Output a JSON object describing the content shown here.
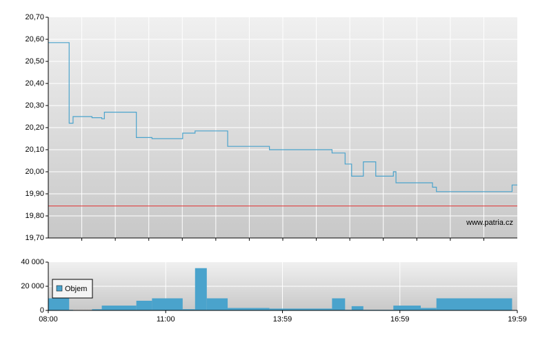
{
  "chart_data": [
    {
      "type": "line",
      "x": [
        "08:00",
        "08:32",
        "08:32",
        "08:38",
        "08:38",
        "09:07",
        "09:07",
        "09:22",
        "09:22",
        "09:26",
        "09:26",
        "10:15",
        "10:15",
        "10:39",
        "10:39",
        "11:26",
        "11:26",
        "11:45",
        "11:45",
        "12:35",
        "12:35",
        "13:39",
        "13:39",
        "15:15",
        "15:15",
        "15:35",
        "15:35",
        "15:45",
        "15:45",
        "16:03",
        "16:03",
        "16:22",
        "16:22",
        "16:49",
        "16:49",
        "16:53",
        "16:53",
        "17:49",
        "17:49",
        "17:55",
        "17:55",
        "19:51",
        "19:51",
        "19:59"
      ],
      "series": [
        {
          "color": "#4aa3cc",
          "values": [
            20.585,
            20.585,
            20.22,
            20.22,
            20.25,
            20.25,
            20.245,
            20.245,
            20.24,
            20.24,
            20.27,
            20.27,
            20.155,
            20.155,
            20.15,
            20.15,
            20.175,
            20.175,
            20.185,
            20.185,
            20.115,
            20.115,
            20.1,
            20.1,
            20.085,
            20.085,
            20.035,
            20.035,
            19.98,
            19.98,
            20.045,
            20.045,
            19.98,
            19.98,
            20.0,
            20.0,
            19.95,
            19.95,
            19.93,
            19.93,
            19.91,
            19.91,
            19.94,
            19.94
          ]
        }
      ],
      "reference_line": {
        "value": 19.845,
        "color": "#e03030"
      },
      "xlim": [
        "08:00",
        "19:59"
      ],
      "ylim": [
        19.7,
        20.7
      ],
      "yticks": [
        {
          "value": 19.7,
          "label": "19,70"
        },
        {
          "value": 19.8,
          "label": "19,80"
        },
        {
          "value": 19.9,
          "label": "19,90"
        },
        {
          "value": 20.0,
          "label": "20,00"
        },
        {
          "value": 20.1,
          "label": "20,10"
        },
        {
          "value": 20.2,
          "label": "20,20"
        },
        {
          "value": 20.3,
          "label": "20,30"
        },
        {
          "value": 20.4,
          "label": "20,40"
        },
        {
          "value": 20.5,
          "label": "20,50"
        },
        {
          "value": 20.6,
          "label": "20,60"
        },
        {
          "value": 20.7,
          "label": "20,70"
        }
      ],
      "watermark": "www.patria.cz"
    },
    {
      "type": "histogram",
      "bins": [
        "08:00",
        "08:32",
        "08:38",
        "09:07",
        "09:22",
        "10:15",
        "10:39",
        "11:26",
        "11:45",
        "12:03",
        "12:35",
        "13:39",
        "15:15",
        "15:35",
        "15:45",
        "16:03",
        "16:49",
        "17:31",
        "17:55",
        "19:51",
        "19:59"
      ],
      "series": [
        {
          "name": "Objem",
          "color": "#4aa3cc",
          "values": [
            10000,
            500,
            0,
            1000,
            4000,
            8000,
            10000,
            1000,
            35000,
            10000,
            2000,
            1500,
            10000,
            500,
            3500,
            500,
            4000,
            2000,
            10000,
            0
          ]
        }
      ],
      "xlim": [
        "08:00",
        "19:59"
      ],
      "xticks": [
        "08:00",
        "11:00",
        "13:59",
        "16:59",
        "19:59"
      ],
      "ylim": [
        0,
        40000
      ],
      "yticks": [
        {
          "value": 0,
          "label": "0"
        },
        {
          "value": 20000,
          "label": "20 000"
        },
        {
          "value": 40000,
          "label": "40 000"
        }
      ]
    }
  ]
}
